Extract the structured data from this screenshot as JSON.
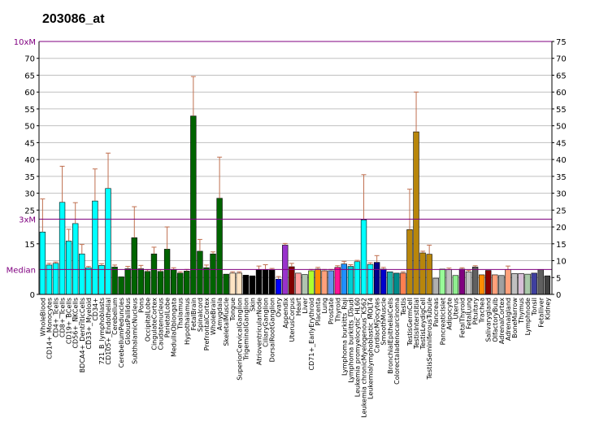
{
  "chart_data": {
    "type": "bar",
    "title": "203086_at",
    "ylim": [
      0,
      75
    ],
    "yticks_left": [
      0,
      15,
      25,
      30,
      35,
      40,
      45,
      50,
      55,
      60,
      65,
      70
    ],
    "yticks_right": [
      0,
      5,
      10,
      15,
      20,
      25,
      30,
      35,
      40,
      45,
      50,
      55,
      60,
      65,
      70,
      75
    ],
    "grid": true,
    "reference_lines": [
      {
        "label": "10xM",
        "value": 75
      },
      {
        "label": "3xM",
        "value": 22.3
      },
      {
        "label": "Median",
        "value": 7.4
      }
    ],
    "colors": {
      "cyan": "#00ffff",
      "darkgreen": "#006400",
      "beige": "#ffe4c4",
      "black": "#000000",
      "blue": "#0000ff",
      "purple": "#9932cc",
      "maroon": "#800000",
      "gold": "#b8860b",
      "error": "#c07050",
      "refline": "#800080",
      "grid": "#c0c0c0"
    },
    "categories": [
      "WholeBlood",
      "CD14+_Monocytes",
      "CD4+_Tcells",
      "CD8+_Tcells",
      "CD19+_BCells",
      "CD56+_NKCells",
      "BDCA4+_DentriticCells",
      "CD33+_Myeloid",
      "CD34+",
      "721_B_lymphoblasts",
      "CD105+_Endothelial",
      "Cerebellum",
      "CerebellumPeduncles",
      "GlobusPallidus",
      "SubthalamicNucleus",
      "Pons",
      "OccipitalLobe",
      "CingulateCortex",
      "Caudatenucleus",
      "ParietalLobe",
      "MedullaOblongata",
      "Thalamus",
      "Hypothalamus",
      "FetalBrain",
      "Spinalcord",
      "PrefrontalCortex",
      "WholeBrain",
      "Amygdala",
      "SkeletalMuscle",
      "Tongue",
      "SuperiorCervicalGanglion",
      "TrigeminalGanglion",
      "Skin",
      "AtrioventricularNode",
      "CiliaryGanglion",
      "DorsalRootGanglion",
      "Ovary",
      "Appendix",
      "UterusCorpus",
      "Heart",
      "Liver",
      "CD71+_EarlyErythroid",
      "Placenta",
      "Lung",
      "Prostate",
      "Thyroid",
      "Lymphoma burkitts_Raji",
      "Lymphoma burkitts_Daudi",
      "Leukemia promyelocytic_HL60",
      "Leukemia chronicMyelogenous_K562",
      "Leukemialymphoblastic_MOLT4",
      "CardiacMyocytes",
      "SmoothMuscle",
      "BronchialEpithelialCells",
      "Colorectaladenocarcinoma",
      "Testis",
      "TestisGermCell",
      "TestisInterstitial",
      "TestisLeydigCell",
      "TestisSeminiferousTubule",
      "Pancreas",
      "PancreaticIslet",
      "Adipocyte",
      "Uterus",
      "FetalThyroid",
      "FetalLung",
      "Pituitary",
      "Trachea",
      "Salivarygland",
      "OlfactoryBulb",
      "AdrenalCortex",
      "Adrenalgland",
      "BoneMarrow",
      "Thymus",
      "Lymphnode",
      "Tonsil",
      "Fetalliver",
      "Kidney"
    ],
    "series": [
      {
        "values": [
          18.5,
          8.7,
          9.2,
          27.3,
          15.8,
          21.0,
          12.0,
          7.9,
          27.7,
          8.6,
          31.4,
          8.1,
          5.2,
          7.6,
          16.8,
          7.6,
          6.8,
          12.0,
          6.8,
          13.4,
          7.4,
          6.3,
          6.9,
          52.9,
          12.8,
          7.9,
          12.0,
          28.5,
          6.0,
          6.3,
          6.3,
          5.7,
          5.5,
          7.4,
          7.3,
          7.2,
          4.5,
          14.6,
          8.2,
          6.3,
          5.9,
          7.0,
          7.5,
          7.0,
          7.0,
          8.0,
          9.0,
          8.3,
          9.7,
          22.1,
          8.9,
          9.5,
          7.5,
          6.7,
          6.3,
          6.3,
          19.2,
          48.2,
          12.3,
          11.9,
          4.8,
          7.5,
          7.4,
          5.6,
          7.5,
          6.7,
          8.1,
          5.8,
          7.1,
          5.8,
          5.6,
          7.4,
          6.2,
          6.2,
          6.0,
          6.3,
          7.4,
          5.5
        ],
        "errors": [
          9.8,
          0.5,
          0.4,
          10.7,
          3.5,
          6.2,
          2.8,
          0.4,
          9.5,
          0.5,
          10.5,
          0.6,
          0.3,
          0.7,
          9.2,
          1.0,
          0.5,
          2.0,
          0.5,
          6.6,
          0.5,
          0.4,
          0.5,
          11.7,
          3.5,
          0.8,
          0.6,
          12.2,
          0.3,
          0.4,
          0.4,
          0.3,
          0.3,
          1.0,
          1.5,
          0.5,
          0.8,
          0.5,
          1.0,
          0.3,
          0.3,
          0.4,
          0.5,
          0.4,
          0.4,
          0.5,
          0.8,
          0.5,
          0.4,
          13.4,
          0.5,
          2.0,
          0.5,
          0.3,
          0.3,
          0.4,
          12.0,
          11.8,
          0.5,
          2.7,
          0.3,
          0.3,
          0.4,
          0.3,
          0.4,
          0.4,
          0.4,
          0.3,
          0.3,
          0.3,
          0.3,
          1.0,
          0.3,
          0.3,
          0.3,
          0.3,
          0.3,
          0.3
        ],
        "colors": [
          "cyan",
          "cyan",
          "cyan",
          "cyan",
          "cyan",
          "cyan",
          "cyan",
          "cyan",
          "cyan",
          "cyan",
          "cyan",
          "darkgreen",
          "darkgreen",
          "darkgreen",
          "darkgreen",
          "darkgreen",
          "darkgreen",
          "darkgreen",
          "darkgreen",
          "darkgreen",
          "darkgreen",
          "darkgreen",
          "darkgreen",
          "darkgreen",
          "darkgreen",
          "darkgreen",
          "darkgreen",
          "darkgreen",
          "darkgreen",
          "beige",
          "beige",
          "black",
          "black",
          "black",
          "black",
          "black",
          "blue",
          "purple",
          "maroon",
          "#ffa0a0",
          "#b0c4b0",
          "#adff2f",
          "#ff8c00",
          "#ffa07a",
          "#6495ed",
          "#ff1493",
          "#1e90ff",
          "#00ced1",
          "#00ffff",
          "#00ffff",
          "#00ffff",
          "#00008b",
          "#0000cd",
          "#20b2aa",
          "#008b8b",
          "#ff7f50",
          "#b8860b",
          "#b8860b",
          "#b8860b",
          "#b8860b",
          "#b0b0b0",
          "#98fb98",
          "#c0c0c0",
          "#90ee90",
          "#800080",
          "#c0c0c0",
          "#606060",
          "#ff8c00",
          "#8b0000",
          "#ffa07a",
          "#a0a0a0",
          "#ffa07a",
          "#c0c0c0",
          "#d8bfd8",
          "#a9c9a9",
          "#3f3f9f",
          "#606060",
          "#404040"
        ]
      }
    ]
  }
}
